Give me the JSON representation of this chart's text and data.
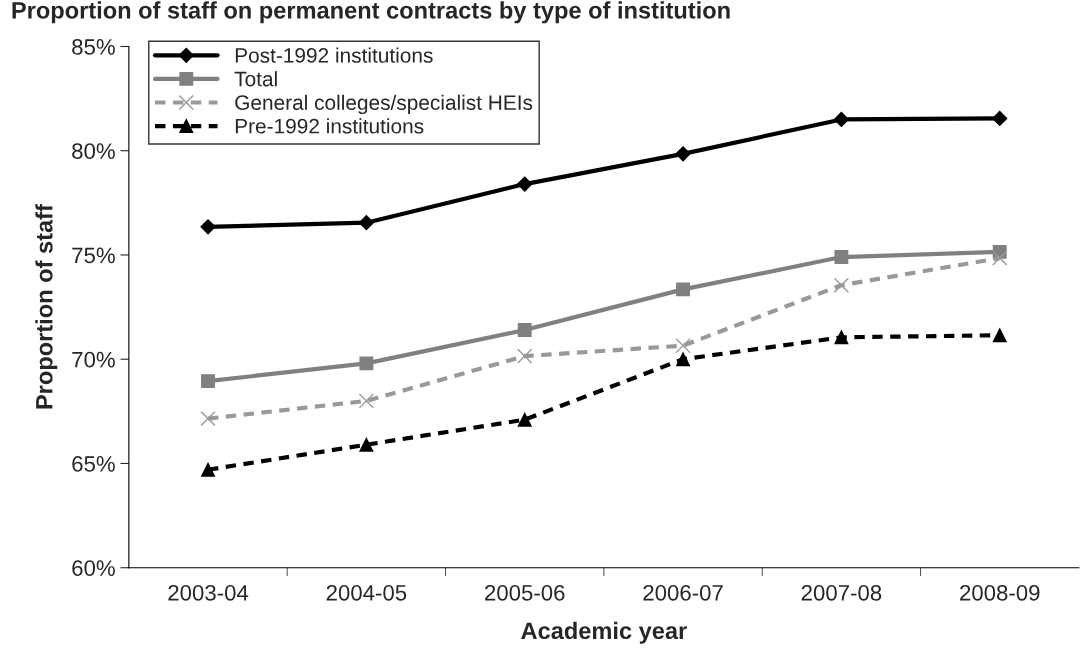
{
  "chart_data": {
    "type": "line",
    "title": "Proportion of staff on permanent contracts by type of institution",
    "xlabel": "Academic year",
    "ylabel": "Proportion of staff",
    "categories": [
      "2003-04",
      "2004-05",
      "2005-06",
      "2006-07",
      "2007-08",
      "2008-09"
    ],
    "series": [
      {
        "name": "Post-1992 institutions",
        "color": "#000000",
        "marker": "diamond",
        "line_style": "solid",
        "values": [
          76.35,
          76.55,
          78.4,
          79.85,
          81.5,
          81.55
        ]
      },
      {
        "name": "Total",
        "color": "#808080",
        "marker": "square",
        "line_style": "solid",
        "values": [
          68.95,
          69.8,
          71.4,
          73.35,
          74.9,
          75.15
        ]
      },
      {
        "name": "General colleges/specialist HEIs",
        "color": "#999999",
        "marker": "cross",
        "line_style": "dashed",
        "values": [
          67.15,
          68.0,
          70.15,
          70.65,
          73.55,
          74.85
        ]
      },
      {
        "name": "Pre-1992 institutions",
        "color": "#000000",
        "marker": "triangle",
        "line_style": "dashed",
        "values": [
          64.7,
          65.9,
          67.1,
          70.0,
          71.05,
          71.15
        ]
      }
    ],
    "ylim": [
      60,
      85
    ],
    "yticks": [
      {
        "value": 60,
        "label": "60%"
      },
      {
        "value": 65,
        "label": "65%"
      },
      {
        "value": 70,
        "label": "70%"
      },
      {
        "value": 75,
        "label": "75%"
      },
      {
        "value": 80,
        "label": "80%"
      },
      {
        "value": 85,
        "label": "85%"
      }
    ],
    "grid": false,
    "legend": "top left"
  }
}
